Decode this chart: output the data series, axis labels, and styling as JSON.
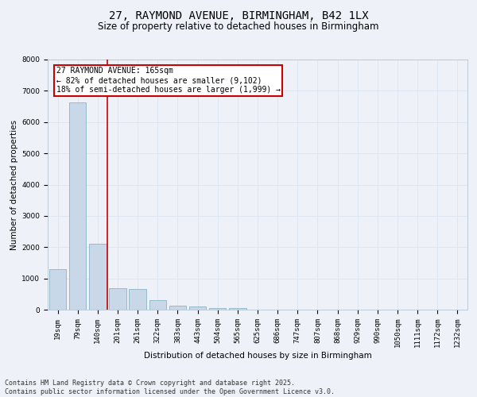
{
  "title_line1": "27, RAYMOND AVENUE, BIRMINGHAM, B42 1LX",
  "title_line2": "Size of property relative to detached houses in Birmingham",
  "xlabel": "Distribution of detached houses by size in Birmingham",
  "ylabel": "Number of detached properties",
  "categories": [
    "19sqm",
    "79sqm",
    "140sqm",
    "201sqm",
    "261sqm",
    "322sqm",
    "383sqm",
    "443sqm",
    "504sqm",
    "565sqm",
    "625sqm",
    "686sqm",
    "747sqm",
    "807sqm",
    "868sqm",
    "929sqm",
    "990sqm",
    "1050sqm",
    "1111sqm",
    "1172sqm",
    "1232sqm"
  ],
  "values": [
    1300,
    6620,
    2100,
    680,
    670,
    300,
    130,
    90,
    50,
    50,
    10,
    5,
    4,
    3,
    2,
    2,
    1,
    1,
    1,
    0,
    0
  ],
  "bar_color": "#c8d8e8",
  "bar_edge_color": "#7aaabb",
  "grid_color": "#dce6f0",
  "background_color": "#eef2f8",
  "red_line_x": 2.5,
  "annotation_text": "27 RAYMOND AVENUE: 165sqm\n← 82% of detached houses are smaller (9,102)\n18% of semi-detached houses are larger (1,999) →",
  "annotation_box_color": "#ffffff",
  "annotation_edge_color": "#cc0000",
  "ylim": [
    0,
    8000
  ],
  "yticks": [
    0,
    1000,
    2000,
    3000,
    4000,
    5000,
    6000,
    7000,
    8000
  ],
  "footer_line1": "Contains HM Land Registry data © Crown copyright and database right 2025.",
  "footer_line2": "Contains public sector information licensed under the Open Government Licence v3.0.",
  "title_fontsize": 10,
  "subtitle_fontsize": 8.5,
  "axis_label_fontsize": 7.5,
  "tick_fontsize": 6.5,
  "annotation_fontsize": 7,
  "footer_fontsize": 6
}
